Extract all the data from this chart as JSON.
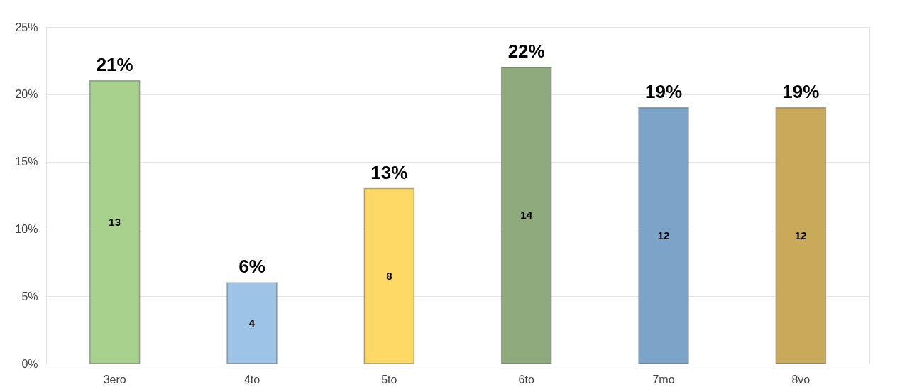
{
  "chart_data": {
    "type": "bar",
    "categories": [
      "3ero",
      "4to",
      "5to",
      "6to",
      "7mo",
      "8vo"
    ],
    "values": [
      21,
      6,
      13,
      22,
      19,
      19
    ],
    "colors": [
      "#a9d18e",
      "#9dc3e6",
      "#ffd966",
      "#8faa7c",
      "#7ca4c8",
      "#c9a95a"
    ],
    "value_labels": [
      "21%",
      "6%",
      "13%",
      "22%",
      "19%",
      "19%"
    ],
    "annotations": [
      "13",
      "4",
      "8",
      "14",
      "12",
      "12"
    ],
    "ylim": [
      0,
      25
    ],
    "yticks": [
      {
        "value": 0,
        "label": "0%"
      },
      {
        "value": 5,
        "label": "5%"
      },
      {
        "value": 10,
        "label": "10%"
      },
      {
        "value": 15,
        "label": "15%"
      },
      {
        "value": 20,
        "label": "20%"
      },
      {
        "value": 25,
        "label": "25%"
      }
    ],
    "grid": "y"
  }
}
